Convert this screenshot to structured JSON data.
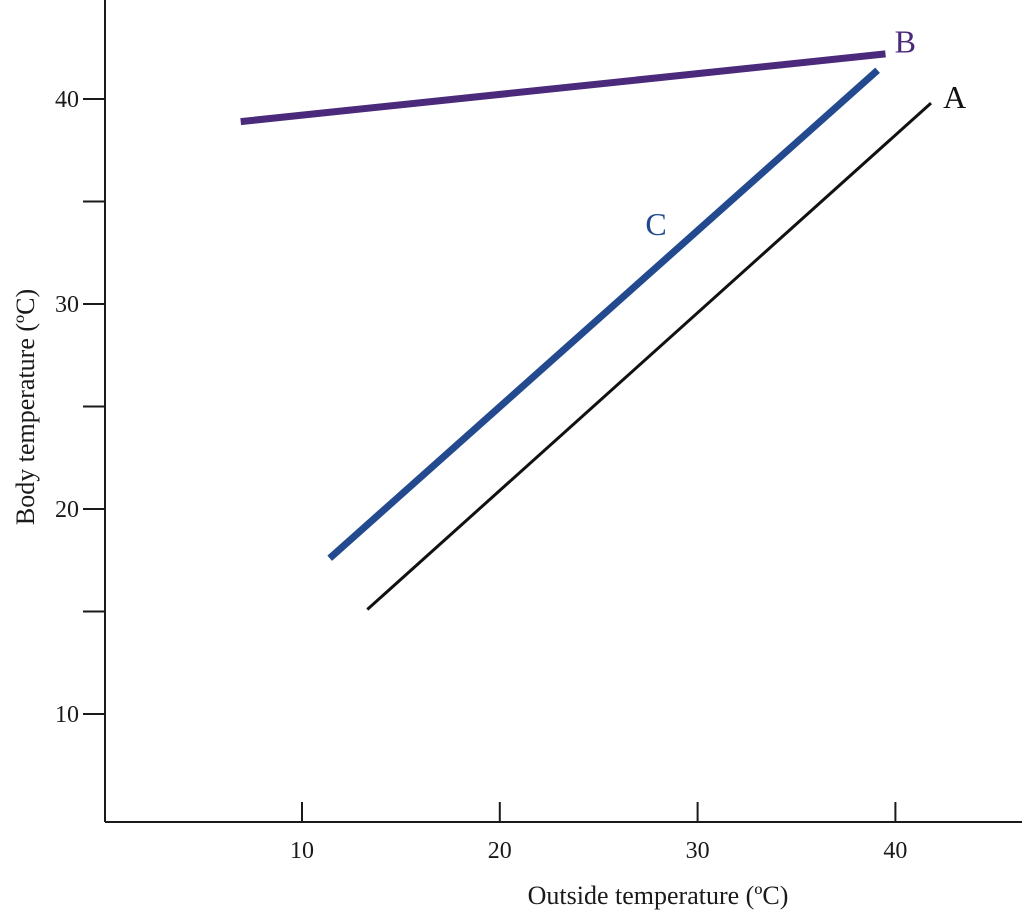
{
  "chart_data": {
    "type": "line",
    "title": "",
    "xlabel": "Outside temperature (ºC)",
    "ylabel": "Body temperature (ºC)",
    "xlim": [
      0,
      46
    ],
    "ylim": [
      5,
      45
    ],
    "x_ticks": [
      10,
      20,
      30,
      40
    ],
    "y_ticks": [
      10,
      15,
      20,
      25,
      30,
      35,
      40
    ],
    "y_tick_labels": [
      "10",
      "",
      "20",
      "",
      "30",
      "",
      "40"
    ],
    "grid": false,
    "series": [
      {
        "name": "A",
        "x": [
          13.3,
          41.8
        ],
        "y": [
          15.1,
          39.8
        ],
        "color": "#111111",
        "stroke": 3
      },
      {
        "name": "B",
        "x": [
          6.9,
          39.5
        ],
        "y": [
          38.9,
          42.2
        ],
        "color": "#4b2a7b",
        "stroke": 7
      },
      {
        "name": "C",
        "x": [
          11.4,
          39.1
        ],
        "y": [
          17.6,
          41.4
        ],
        "color": "#234a8f",
        "stroke": 7
      }
    ],
    "labels": [
      {
        "text": "A",
        "x": 43.0,
        "y": 40.1,
        "color": "#111111"
      },
      {
        "text": "B",
        "x": 40.5,
        "y": 42.8,
        "color": "#4b2a7b"
      },
      {
        "text": "C",
        "x": 27.9,
        "y": 33.9,
        "color": "#234a8f"
      }
    ]
  }
}
